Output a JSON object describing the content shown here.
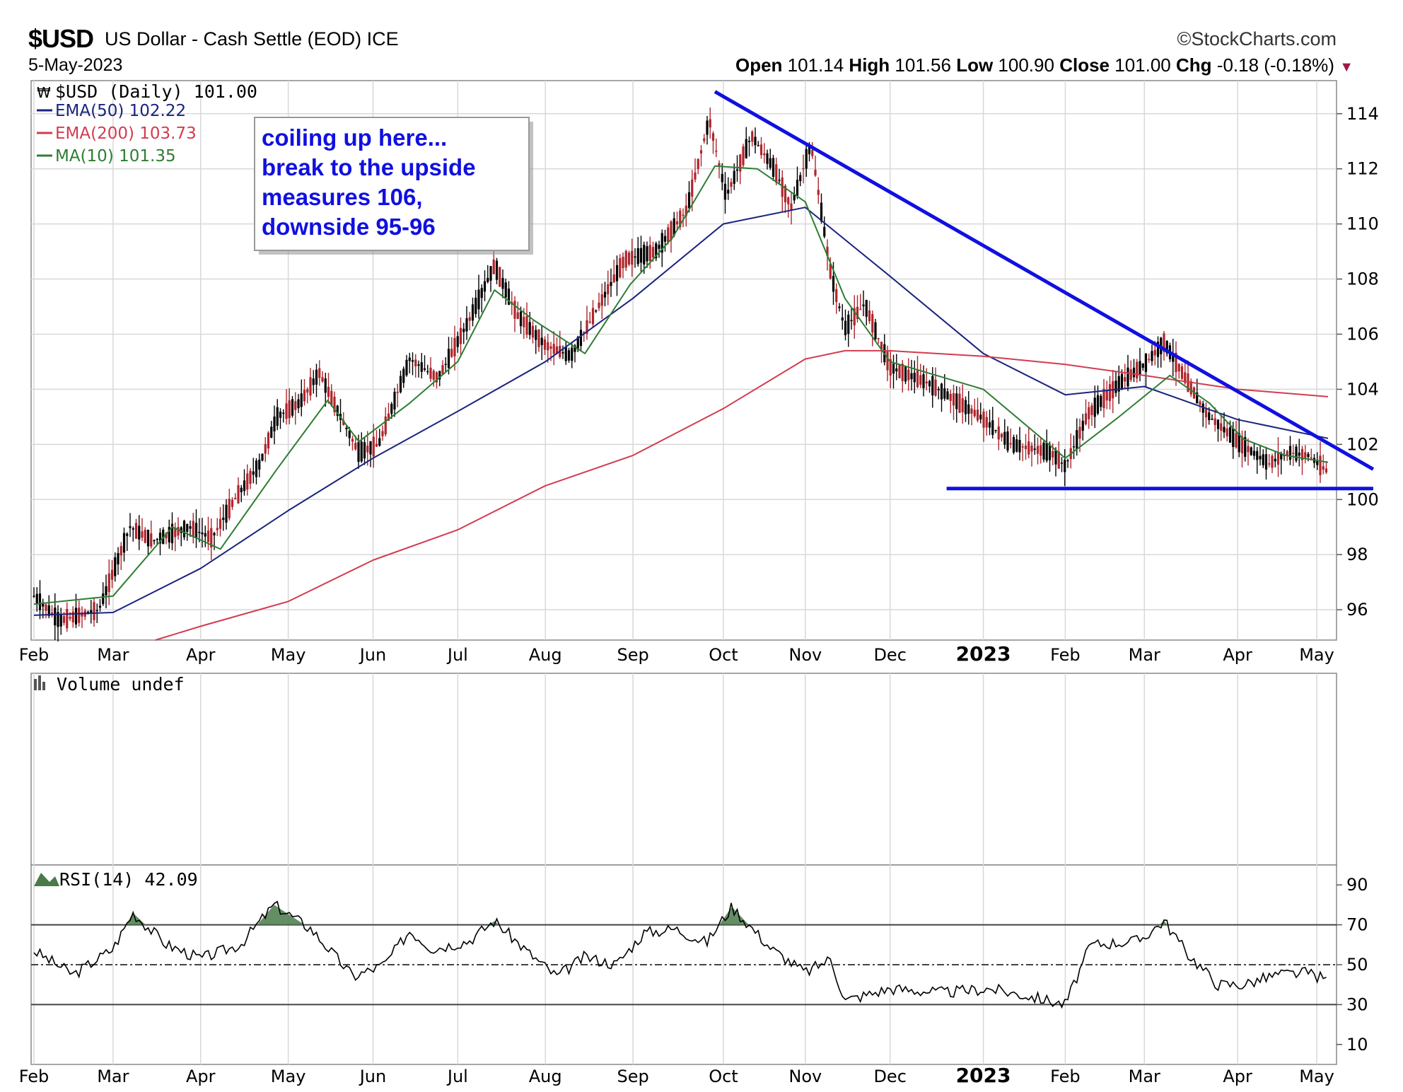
{
  "header": {
    "symbol": "$USD",
    "description": "US Dollar - Cash Settle (EOD) ICE",
    "date": "5-May-2023",
    "brand": "©StockCharts.com",
    "open_label": "Open",
    "open": "101.14",
    "high_label": "High",
    "high": "101.56",
    "low_label": "Low",
    "low": "100.90",
    "close_label": "Close",
    "close": "101.00",
    "chg_label": "Chg",
    "chg": "-0.18 (-0.18%)"
  },
  "legend": {
    "price": "$USD (Daily) 101.00",
    "ema50": "EMA(50) 102.22",
    "ema200": "EMA(200) 103.73",
    "ma10": "MA(10) 101.35"
  },
  "annotation": [
    "coiling up here...",
    "break to the upside",
    "measures 106,",
    "downside 95-96"
  ],
  "volume_label": "Volume undef",
  "rsi_label": "RSI(14) 42.09",
  "colors": {
    "ema50": "#1a237e",
    "ema200": "#d23c50",
    "ma10": "#2e7d32",
    "trendline": "#1010e0",
    "annotation_text": "#1010e0",
    "rsi": "#000000",
    "rsi_fill": "#4a7a4a"
  },
  "chart_data": [
    {
      "type": "line",
      "title": "$USD (Daily) 101.00",
      "x_tick_labels": [
        "Feb",
        "Mar",
        "Apr",
        "May",
        "Jun",
        "Jul",
        "Aug",
        "Sep",
        "Oct",
        "Nov",
        "Dec",
        "2023",
        "Feb",
        "Mar",
        "Apr",
        "May"
      ],
      "x_dates": [
        "2022-02-01",
        "2022-03-01",
        "2022-04-01",
        "2022-05-02",
        "2022-06-01",
        "2022-07-01",
        "2022-08-01",
        "2022-09-01",
        "2022-10-03",
        "2022-11-01",
        "2022-12-01",
        "2023-01-03",
        "2023-02-01",
        "2023-03-01",
        "2023-04-03",
        "2023-05-01"
      ],
      "y_ticks": [
        96,
        98,
        100,
        102,
        104,
        106,
        108,
        110,
        112,
        114
      ],
      "ylim": [
        94.9,
        115.2
      ],
      "series": [
        {
          "name": "$USD (Daily)",
          "x": [
            "2022-02-01",
            "2022-02-10",
            "2022-02-24",
            "2022-03-07",
            "2022-03-15",
            "2022-03-28",
            "2022-04-05",
            "2022-04-13",
            "2022-04-22",
            "2022-04-28",
            "2022-05-06",
            "2022-05-13",
            "2022-05-20",
            "2022-05-27",
            "2022-06-03",
            "2022-06-14",
            "2022-06-24",
            "2022-07-05",
            "2022-07-14",
            "2022-07-22",
            "2022-08-01",
            "2022-08-10",
            "2022-08-17",
            "2022-08-29",
            "2022-09-09",
            "2022-09-20",
            "2022-09-28",
            "2022-10-04",
            "2022-10-13",
            "2022-10-21",
            "2022-10-27",
            "2022-11-03",
            "2022-11-10",
            "2022-11-15",
            "2022-11-22",
            "2022-12-01",
            "2022-12-15",
            "2023-01-02",
            "2023-01-13",
            "2023-01-27",
            "2023-02-01",
            "2023-02-09",
            "2023-02-20",
            "2023-03-01",
            "2023-03-08",
            "2023-03-23",
            "2023-04-03",
            "2023-04-14",
            "2023-04-21",
            "2023-04-28",
            "2023-05-05"
          ],
          "values": [
            96.5,
            95.6,
            96.0,
            99.0,
            98.5,
            99.0,
            98.6,
            100.0,
            101.3,
            103.0,
            103.5,
            104.6,
            103.1,
            101.7,
            102.0,
            105.1,
            104.4,
            106.5,
            108.5,
            106.7,
            105.6,
            105.2,
            106.5,
            108.7,
            109.0,
            110.5,
            113.8,
            111.0,
            113.2,
            112.0,
            110.6,
            112.9,
            108.2,
            106.2,
            107.1,
            104.8,
            104.2,
            103.0,
            102.0,
            101.7,
            101.2,
            103.1,
            104.2,
            104.9,
            105.7,
            103.1,
            102.1,
            101.3,
            101.7,
            101.6,
            101.0
          ]
        },
        {
          "name": "EMA(50)",
          "x": [
            "2022-02-01",
            "2022-03-01",
            "2022-04-01",
            "2022-05-02",
            "2022-06-01",
            "2022-07-01",
            "2022-08-01",
            "2022-09-01",
            "2022-10-03",
            "2022-11-01",
            "2022-12-01",
            "2023-01-03",
            "2023-02-01",
            "2023-03-01",
            "2023-04-03",
            "2023-05-05"
          ],
          "values": [
            95.8,
            95.9,
            97.5,
            99.6,
            101.5,
            103.2,
            105.0,
            107.3,
            110.0,
            110.6,
            108.1,
            105.3,
            103.8,
            104.1,
            102.9,
            102.22
          ]
        },
        {
          "name": "EMA(200)",
          "x": [
            "2022-03-16",
            "2022-04-01",
            "2022-05-02",
            "2022-06-01",
            "2022-07-01",
            "2022-08-01",
            "2022-09-01",
            "2022-10-03",
            "2022-11-01",
            "2022-11-15",
            "2022-12-01",
            "2023-01-03",
            "2023-02-01",
            "2023-03-01",
            "2023-04-03",
            "2023-05-05"
          ],
          "values": [
            94.9,
            95.4,
            96.3,
            97.8,
            98.9,
            100.5,
            101.6,
            103.3,
            105.1,
            105.4,
            105.4,
            105.2,
            104.9,
            104.5,
            104.0,
            103.73
          ]
        },
        {
          "name": "MA(10)",
          "x": [
            "2022-02-01",
            "2022-03-01",
            "2022-03-22",
            "2022-04-08",
            "2022-04-28",
            "2022-05-16",
            "2022-05-27",
            "2022-06-14",
            "2022-07-01",
            "2022-07-14",
            "2022-07-28",
            "2022-08-15",
            "2022-08-31",
            "2022-09-15",
            "2022-09-30",
            "2022-10-15",
            "2022-11-01",
            "2022-11-15",
            "2022-12-01",
            "2023-01-03",
            "2023-02-01",
            "2023-02-20",
            "2023-03-10",
            "2023-03-24",
            "2023-04-05",
            "2023-04-20",
            "2023-05-05"
          ],
          "values": [
            96.2,
            96.5,
            99.0,
            98.2,
            101.1,
            103.6,
            102.1,
            103.5,
            105.0,
            107.6,
            106.5,
            105.3,
            107.8,
            109.5,
            112.1,
            112.0,
            110.8,
            107.3,
            105.0,
            104.0,
            101.5,
            103.0,
            104.5,
            103.5,
            102.2,
            101.6,
            101.35
          ]
        },
        {
          "name": "trendline-top",
          "x": [
            "2022-09-30",
            "2023-05-21"
          ],
          "values": [
            114.8,
            101.1
          ]
        },
        {
          "name": "trendline-support",
          "x": [
            "2022-12-21",
            "2023-05-21"
          ],
          "values": [
            100.4,
            100.4
          ]
        }
      ]
    },
    {
      "type": "line",
      "title": "RSI(14) 42.09",
      "y_ticks": [
        10,
        30,
        50,
        70,
        90
      ],
      "ylim": [
        0,
        100
      ],
      "series": [
        {
          "name": "RSI(14)",
          "x": [
            "2022-02-01",
            "2022-02-15",
            "2022-03-01",
            "2022-03-08",
            "2022-03-20",
            "2022-04-01",
            "2022-04-15",
            "2022-04-27",
            "2022-05-10",
            "2022-05-25",
            "2022-06-05",
            "2022-06-14",
            "2022-06-22",
            "2022-07-05",
            "2022-07-14",
            "2022-07-26",
            "2022-08-05",
            "2022-08-15",
            "2022-08-26",
            "2022-09-05",
            "2022-09-16",
            "2022-09-27",
            "2022-10-06",
            "2022-10-20",
            "2022-11-01",
            "2022-11-10",
            "2022-11-15",
            "2022-12-01",
            "2022-12-20",
            "2023-01-05",
            "2023-01-20",
            "2023-02-01",
            "2023-02-10",
            "2023-02-27",
            "2023-03-08",
            "2023-03-16",
            "2023-03-27",
            "2023-04-05",
            "2023-04-17",
            "2023-04-28",
            "2023-05-05"
          ],
          "values": [
            57,
            45,
            58,
            76,
            60,
            53,
            60,
            80,
            68,
            44,
            50,
            67,
            58,
            62,
            72,
            56,
            44,
            54,
            50,
            66,
            68,
            61,
            79,
            58,
            46,
            53,
            32,
            38,
            36,
            38,
            34,
            30,
            60,
            62,
            72,
            56,
            40,
            40,
            45,
            46,
            42.09
          ]
        }
      ],
      "reference_lines": [
        70,
        50,
        30
      ]
    }
  ]
}
